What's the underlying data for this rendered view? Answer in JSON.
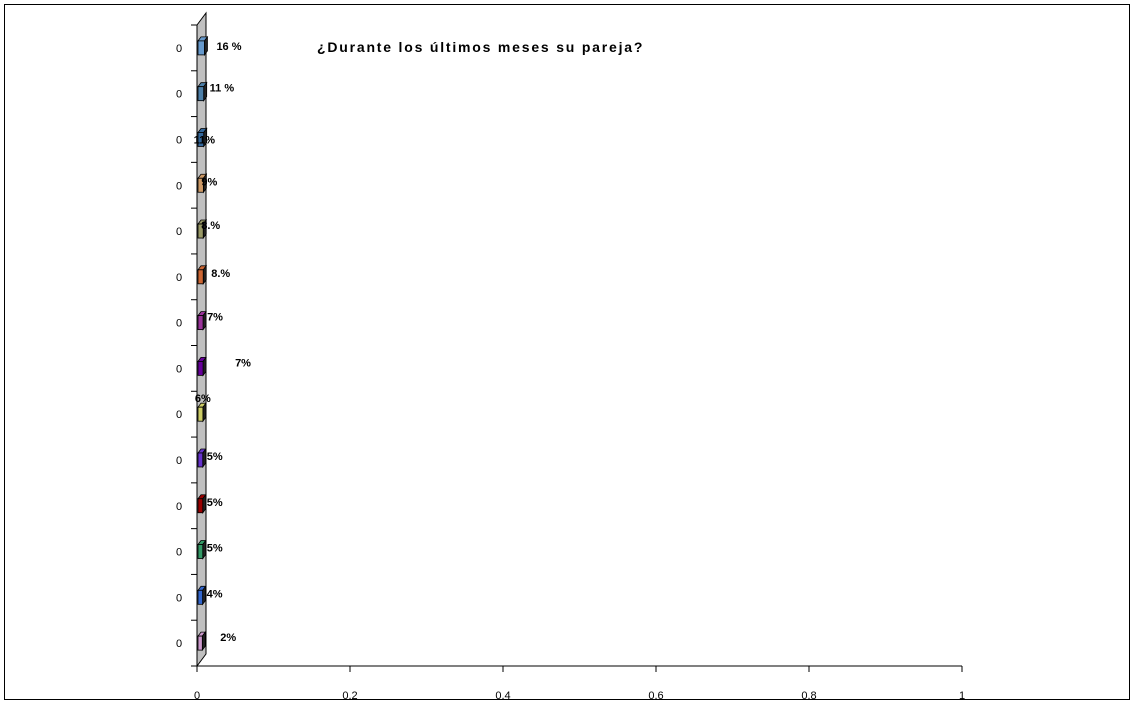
{
  "chart_data": {
    "type": "bar",
    "orientation": "horizontal",
    "three_d": true,
    "title": "¿Durante los últimos meses su pareja?",
    "xlabel": "",
    "ylabel": "",
    "categories": [
      "0",
      "0",
      "0",
      "0",
      "0",
      "0",
      "0",
      "0",
      "0",
      "0",
      "0",
      "0",
      "0",
      "0"
    ],
    "values": [
      0.16,
      0.11,
      0.11,
      0.09,
      0.08,
      0.08,
      0.07,
      0.07,
      0.06,
      0.05,
      0.05,
      0.05,
      0.04,
      0.02
    ],
    "data_labels": [
      "16 %",
      "11 %",
      "11%",
      "9%",
      "8.%",
      "8.%",
      "7%",
      "7%",
      "6%",
      "5%",
      "5%",
      "5%",
      "4%",
      "2%"
    ],
    "bar_colors": [
      "#6699cc",
      "#4d7fa8",
      "#336699",
      "#cc9966",
      "#999966",
      "#cc6633",
      "#993399",
      "#660099",
      "#cccc66",
      "#6633cc",
      "#990000",
      "#339966",
      "#3366cc",
      "#cc99cc"
    ],
    "x_ticks": [
      "0",
      "0.2",
      "0.4",
      "0.6",
      "0.8",
      "1"
    ],
    "xlim": [
      0,
      1
    ],
    "grid": false,
    "legend": "none"
  }
}
